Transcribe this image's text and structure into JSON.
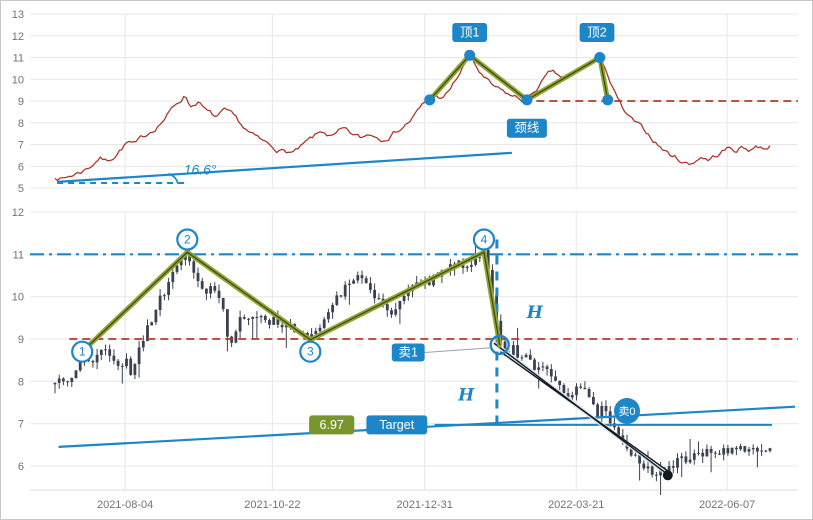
{
  "window": {
    "bg": "#ffffff",
    "border": "#c8c8c8"
  },
  "colors": {
    "blue": "#1d86c8",
    "red_line": "#a93226",
    "red_dashed": "#b03a2e",
    "candle": "#3a4150",
    "zigzag_outer": "#8fa633",
    "zigzag_inner": "#3c4413",
    "green_box": "#7a942e",
    "grid": "#e7e7e7",
    "black": "#15181c",
    "axis_text": "#737373",
    "connector": "#9aa0a6",
    "channel_casing": "#d7e6f2"
  },
  "x_axis": {
    "ticks": [
      {
        "t": 0.098,
        "label": "2021-08-04"
      },
      {
        "t": 0.304,
        "label": "2021-10-22"
      },
      {
        "t": 0.517,
        "label": "2021-12-31"
      },
      {
        "t": 0.729,
        "label": "2022-03-21"
      },
      {
        "t": 0.94,
        "label": "2022-06-07"
      }
    ]
  },
  "chart_data": [
    {
      "type": "line",
      "panel": "top",
      "title": "",
      "xlabel": "",
      "ylabel": "",
      "ylim": [
        5,
        13
      ],
      "y_ticks": [
        13,
        12,
        11,
        10,
        9,
        8,
        7,
        6,
        5
      ],
      "keypoints": [
        [
          0.0,
          5.55
        ],
        [
          0.012,
          5.45
        ],
        [
          0.025,
          5.62
        ],
        [
          0.038,
          5.8
        ],
        [
          0.05,
          6.05
        ],
        [
          0.062,
          6.45
        ],
        [
          0.072,
          6.25
        ],
        [
          0.082,
          6.5
        ],
        [
          0.092,
          6.85
        ],
        [
          0.102,
          7.15
        ],
        [
          0.112,
          6.95
        ],
        [
          0.125,
          7.3
        ],
        [
          0.14,
          7.8
        ],
        [
          0.155,
          8.3
        ],
        [
          0.168,
          8.8
        ],
        [
          0.182,
          9.3
        ],
        [
          0.19,
          8.8
        ],
        [
          0.2,
          9.05
        ],
        [
          0.212,
          8.5
        ],
        [
          0.225,
          8.2
        ],
        [
          0.238,
          8.45
        ],
        [
          0.252,
          8.05
        ],
        [
          0.265,
          7.65
        ],
        [
          0.278,
          7.3
        ],
        [
          0.292,
          7.0
        ],
        [
          0.305,
          6.85
        ],
        [
          0.32,
          6.7
        ],
        [
          0.335,
          6.62
        ],
        [
          0.348,
          6.9
        ],
        [
          0.362,
          7.25
        ],
        [
          0.375,
          7.55
        ],
        [
          0.388,
          7.3
        ],
        [
          0.402,
          7.58
        ],
        [
          0.415,
          7.35
        ],
        [
          0.428,
          7.2
        ],
        [
          0.442,
          7.48
        ],
        [
          0.455,
          7.3
        ],
        [
          0.468,
          7.55
        ],
        [
          0.482,
          7.8
        ],
        [
          0.495,
          8.1
        ],
        [
          0.508,
          8.55
        ],
        [
          0.518,
          8.9
        ],
        [
          0.526,
          9.1
        ],
        [
          0.534,
          9.28
        ],
        [
          0.542,
          9.05
        ],
        [
          0.552,
          9.45
        ],
        [
          0.562,
          10.0
        ],
        [
          0.572,
          10.6
        ],
        [
          0.58,
          11.1
        ],
        [
          0.588,
          10.6
        ],
        [
          0.598,
          10.1
        ],
        [
          0.61,
          9.65
        ],
        [
          0.624,
          9.35
        ],
        [
          0.64,
          9.15
        ],
        [
          0.652,
          9.02
        ],
        [
          0.66,
          9.0
        ],
        [
          0.67,
          9.4
        ],
        [
          0.682,
          9.9
        ],
        [
          0.694,
          10.25
        ],
        [
          0.706,
          10.05
        ],
        [
          0.718,
          9.9
        ],
        [
          0.73,
          10.25
        ],
        [
          0.742,
          10.6
        ],
        [
          0.752,
          10.85
        ],
        [
          0.762,
          11.0
        ],
        [
          0.77,
          10.5
        ],
        [
          0.777,
          9.85
        ],
        [
          0.784,
          9.25
        ],
        [
          0.792,
          8.7
        ],
        [
          0.8,
          8.25
        ],
        [
          0.81,
          7.95
        ],
        [
          0.82,
          7.65
        ],
        [
          0.83,
          7.4
        ],
        [
          0.84,
          7.1
        ],
        [
          0.85,
          6.8
        ],
        [
          0.86,
          6.55
        ],
        [
          0.87,
          6.38
        ],
        [
          0.88,
          6.22
        ],
        [
          0.888,
          6.1
        ],
        [
          0.896,
          6.32
        ],
        [
          0.905,
          6.5
        ],
        [
          0.914,
          6.32
        ],
        [
          0.923,
          6.48
        ],
        [
          0.932,
          6.66
        ],
        [
          0.941,
          6.82
        ],
        [
          0.95,
          6.72
        ],
        [
          0.96,
          6.88
        ],
        [
          0.97,
          6.78
        ],
        [
          0.98,
          6.95
        ],
        [
          0.99,
          6.88
        ],
        [
          1.0,
          7.0
        ]
      ],
      "annotations": {
        "zigzag": [
          [
            0.524,
            9.05
          ],
          [
            0.58,
            11.1
          ],
          [
            0.66,
            9.05
          ],
          [
            0.762,
            11.0
          ],
          [
            0.773,
            9.05
          ]
        ],
        "dots": [
          [
            0.524,
            9.05
          ],
          [
            0.58,
            11.1
          ],
          [
            0.66,
            9.05
          ],
          [
            0.762,
            11.0
          ],
          [
            0.773,
            9.05
          ]
        ],
        "hlines": [
          {
            "name": "neckline-hline",
            "p": 9.0,
            "t1": 0.655,
            "t2": 1.045,
            "style": "dashed",
            "color": "red"
          }
        ],
        "trendline": {
          "name": "angle-trendline",
          "t1": 0.003,
          "p1": 5.28,
          "t2": 0.639,
          "p2": 6.62
        },
        "baseline": {
          "name": "angle-baseline",
          "p": 5.23,
          "t1": 0.003,
          "t2": 0.183
        },
        "angle": {
          "text": "16.6°",
          "t": 0.18,
          "p": 5.62
        },
        "labels": [
          {
            "name": "label-top1",
            "text": "顶1",
            "t": 0.58,
            "p": 12.15,
            "bg": "blue"
          },
          {
            "name": "label-top2",
            "text": "顶2",
            "t": 0.758,
            "p": 12.15,
            "bg": "blue"
          },
          {
            "name": "label-neckline",
            "text": "颈线",
            "t": 0.66,
            "p": 7.75,
            "bg": "blue"
          }
        ]
      }
    },
    {
      "type": "candlestick",
      "panel": "bottom",
      "title": "",
      "xlabel": "",
      "ylabel": "",
      "ylim": [
        6,
        12
      ],
      "y_ticks": [
        12,
        11,
        10,
        9,
        8,
        7,
        6
      ],
      "keypoints": [
        [
          0.0,
          7.95
        ],
        [
          0.008,
          8.15
        ],
        [
          0.016,
          7.92
        ],
        [
          0.024,
          8.12
        ],
        [
          0.032,
          8.38
        ],
        [
          0.04,
          8.62
        ],
        [
          0.05,
          8.45
        ],
        [
          0.06,
          8.7
        ],
        [
          0.07,
          8.85
        ],
        [
          0.08,
          8.5
        ],
        [
          0.09,
          8.25
        ],
        [
          0.1,
          8.45
        ],
        [
          0.107,
          8.18
        ],
        [
          0.114,
          8.55
        ],
        [
          0.122,
          8.95
        ],
        [
          0.132,
          9.35
        ],
        [
          0.142,
          9.75
        ],
        [
          0.152,
          10.1
        ],
        [
          0.162,
          10.45
        ],
        [
          0.172,
          10.75
        ],
        [
          0.185,
          11.05
        ],
        [
          0.193,
          10.7
        ],
        [
          0.201,
          10.4
        ],
        [
          0.21,
          10.1
        ],
        [
          0.219,
          10.35
        ],
        [
          0.228,
          10.05
        ],
        [
          0.236,
          9.6
        ],
        [
          0.243,
          8.8
        ],
        [
          0.251,
          9.1
        ],
        [
          0.259,
          9.45
        ],
        [
          0.267,
          9.6
        ],
        [
          0.276,
          9.42
        ],
        [
          0.286,
          9.55
        ],
        [
          0.296,
          9.35
        ],
        [
          0.306,
          9.5
        ],
        [
          0.316,
          9.3
        ],
        [
          0.326,
          9.45
        ],
        [
          0.336,
          9.2
        ],
        [
          0.346,
          9.08
        ],
        [
          0.357,
          8.98
        ],
        [
          0.368,
          9.28
        ],
        [
          0.379,
          9.58
        ],
        [
          0.39,
          9.88
        ],
        [
          0.401,
          10.12
        ],
        [
          0.412,
          10.32
        ],
        [
          0.422,
          10.48
        ],
        [
          0.432,
          10.35
        ],
        [
          0.442,
          10.15
        ],
        [
          0.452,
          9.95
        ],
        [
          0.462,
          9.75
        ],
        [
          0.471,
          9.62
        ],
        [
          0.481,
          9.85
        ],
        [
          0.491,
          10.05
        ],
        [
          0.501,
          10.22
        ],
        [
          0.511,
          10.4
        ],
        [
          0.521,
          10.28
        ],
        [
          0.532,
          10.48
        ],
        [
          0.545,
          10.68
        ],
        [
          0.558,
          10.85
        ],
        [
          0.571,
          10.7
        ],
        [
          0.585,
          10.88
        ],
        [
          0.6,
          11.05
        ],
        [
          0.606,
          10.55
        ],
        [
          0.612,
          9.95
        ],
        [
          0.619,
          9.25
        ],
        [
          0.625,
          8.88
        ],
        [
          0.632,
          8.62
        ],
        [
          0.64,
          8.8
        ],
        [
          0.648,
          8.55
        ],
        [
          0.656,
          8.7
        ],
        [
          0.664,
          8.45
        ],
        [
          0.672,
          8.28
        ],
        [
          0.68,
          8.45
        ],
        [
          0.69,
          8.2
        ],
        [
          0.7,
          8.02
        ],
        [
          0.71,
          7.8
        ],
        [
          0.718,
          7.58
        ],
        [
          0.726,
          7.76
        ],
        [
          0.734,
          7.94
        ],
        [
          0.742,
          7.7
        ],
        [
          0.75,
          7.46
        ],
        [
          0.758,
          7.22
        ],
        [
          0.766,
          7.36
        ],
        [
          0.774,
          7.1
        ],
        [
          0.782,
          6.9
        ],
        [
          0.79,
          6.66
        ],
        [
          0.798,
          6.46
        ],
        [
          0.806,
          6.32
        ],
        [
          0.814,
          6.16
        ],
        [
          0.822,
          6.02
        ],
        [
          0.83,
          5.92
        ],
        [
          0.84,
          5.82
        ],
        [
          0.848,
          5.96
        ],
        [
          0.857,
          5.86
        ],
        [
          0.865,
          6.06
        ],
        [
          0.873,
          6.2
        ],
        [
          0.881,
          6.1
        ],
        [
          0.889,
          6.26
        ],
        [
          0.897,
          6.36
        ],
        [
          0.905,
          6.22
        ],
        [
          0.913,
          6.32
        ],
        [
          0.921,
          6.16
        ],
        [
          0.929,
          6.3
        ],
        [
          0.937,
          6.42
        ],
        [
          0.945,
          6.32
        ],
        [
          0.953,
          6.46
        ],
        [
          0.961,
          6.36
        ],
        [
          0.969,
          6.46
        ],
        [
          0.977,
          6.32
        ],
        [
          0.985,
          6.42
        ],
        [
          1.0,
          6.42
        ]
      ],
      "annotations": {
        "zigzag": [
          [
            0.038,
            8.7
          ],
          [
            0.185,
            11.05
          ],
          [
            0.357,
            8.98
          ],
          [
            0.6,
            11.05
          ],
          [
            0.622,
            8.86
          ]
        ],
        "hlines": [
          {
            "name": "resistance-hline",
            "p": 11.0,
            "t1": -0.035,
            "t2": 1.045,
            "style": "dashdot",
            "color": "blue"
          },
          {
            "name": "neckline-hline",
            "p": 9.0,
            "t1": 0.02,
            "t2": 1.045,
            "style": "dashed",
            "color": "red"
          },
          {
            "name": "target-hline",
            "p": 6.97,
            "t1": 0.531,
            "t2": 1.003,
            "style": "solid",
            "color": "blue"
          }
        ],
        "vline": {
          "name": "measure-vline",
          "t": 0.618,
          "p1": 11.35,
          "p2": 6.93
        },
        "trendline": {
          "name": "support-trendline",
          "t1": 0.005,
          "p1": 6.45,
          "t2": 1.035,
          "p2": 7.4
        },
        "numbered_circles": [
          {
            "n": "1",
            "t": 0.038,
            "p": 8.7
          },
          {
            "n": "2",
            "t": 0.185,
            "p": 11.35
          },
          {
            "n": "3",
            "t": 0.357,
            "p": 8.7
          },
          {
            "n": "4",
            "t": 0.6,
            "p": 11.35
          }
        ],
        "break_circle": {
          "t": 0.622,
          "p": 8.86
        },
        "channel": [
          {
            "t1": 0.614,
            "p1": 8.9,
            "t2": 0.857,
            "p2": 5.8
          },
          {
            "t1": 0.623,
            "p1": 8.7,
            "t2": 0.859,
            "p2": 5.86
          }
        ],
        "end_dot": {
          "t": 0.857,
          "p": 5.78
        },
        "sell1_label": {
          "text": "卖1",
          "t": 0.494,
          "p": 8.68,
          "target_t": 0.622,
          "target_p": 8.86
        },
        "sell0_badge": {
          "text": "卖0",
          "t": 0.8,
          "p": 7.3
        },
        "h_labels": [
          {
            "text": "H",
            "t": 0.671,
            "p": 9.5
          },
          {
            "text": "H",
            "t": 0.575,
            "p": 7.55
          }
        ],
        "labels": [
          {
            "name": "target-price-label",
            "text": "6.97",
            "t": 0.387,
            "p": 6.97,
            "bg": "green"
          },
          {
            "name": "target-label",
            "text": "Target",
            "t": 0.478,
            "p": 6.97,
            "bg": "blue"
          }
        ]
      }
    }
  ]
}
